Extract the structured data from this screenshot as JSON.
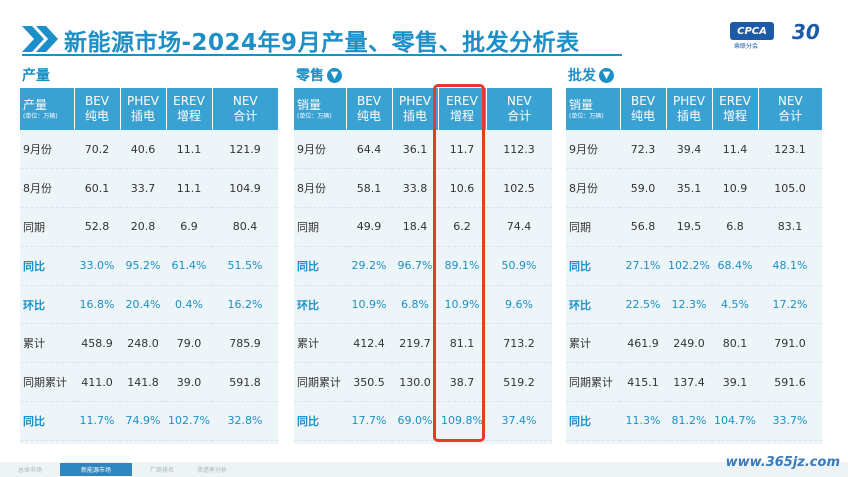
{
  "header": {
    "title": "新能源市场-2024年9月产量、零售、批发分析表",
    "logo_text": "CPCA",
    "logo_sub": "乘联分会",
    "logo_30": "30"
  },
  "sections": {
    "production": {
      "label": "产量"
    },
    "retail": {
      "label": "零售"
    },
    "wholesale": {
      "label": "批发"
    }
  },
  "tables": {
    "production": {
      "head": [
        {
          "l1": "产量",
          "l2": "(单位：万辆)"
        },
        {
          "l1": "BEV",
          "l2": "纯电"
        },
        {
          "l1": "PHEV",
          "l2": "插电"
        },
        {
          "l1": "EREV",
          "l2": "增程"
        },
        {
          "l1": "NEV",
          "l2": "合计"
        }
      ],
      "rows": [
        [
          "9月份",
          "70.2",
          "40.6",
          "11.1",
          "121.9"
        ],
        [
          "8月份",
          "60.1",
          "33.7",
          "11.1",
          "104.9"
        ],
        [
          "同期",
          "52.8",
          "20.8",
          "6.9",
          "80.4"
        ],
        [
          "同比",
          "33.0%",
          "95.2%",
          "61.4%",
          "51.5%"
        ],
        [
          "环比",
          "16.8%",
          "20.4%",
          "0.4%",
          "16.2%"
        ],
        [
          "累计",
          "458.9",
          "248.0",
          "79.0",
          "785.9"
        ],
        [
          "同期累计",
          "411.0",
          "141.8",
          "39.0",
          "591.8"
        ],
        [
          "同比",
          "11.7%",
          "74.9%",
          "102.7%",
          "32.8%"
        ]
      ]
    },
    "retail": {
      "head": [
        {
          "l1": "销量",
          "l2": "(单位：万辆)"
        },
        {
          "l1": "BEV",
          "l2": "纯电"
        },
        {
          "l1": "PHEV",
          "l2": "插电"
        },
        {
          "l1": "EREV",
          "l2": "增程"
        },
        {
          "l1": "NEV",
          "l2": "合计"
        }
      ],
      "rows": [
        [
          "9月份",
          "64.4",
          "36.1",
          "11.7",
          "112.3"
        ],
        [
          "8月份",
          "58.1",
          "33.8",
          "10.6",
          "102.5"
        ],
        [
          "同期",
          "49.9",
          "18.4",
          "6.2",
          "74.4"
        ],
        [
          "同比",
          "29.2%",
          "96.7%",
          "89.1%",
          "50.9%"
        ],
        [
          "环比",
          "10.9%",
          "6.8%",
          "10.9%",
          "9.6%"
        ],
        [
          "累计",
          "412.4",
          "219.7",
          "81.1",
          "713.2"
        ],
        [
          "同期累计",
          "350.5",
          "130.0",
          "38.7",
          "519.2"
        ],
        [
          "同比",
          "17.7%",
          "69.0%",
          "109.8%",
          "37.4%"
        ]
      ]
    },
    "wholesale": {
      "head": [
        {
          "l1": "销量",
          "l2": "(单位：万辆)"
        },
        {
          "l1": "BEV",
          "l2": "纯电"
        },
        {
          "l1": "PHEV",
          "l2": "插电"
        },
        {
          "l1": "EREV",
          "l2": "增程"
        },
        {
          "l1": "NEV",
          "l2": "合计"
        }
      ],
      "rows": [
        [
          "9月份",
          "72.3",
          "39.4",
          "11.4",
          "123.1"
        ],
        [
          "8月份",
          "59.0",
          "35.1",
          "10.9",
          "105.0"
        ],
        [
          "同期",
          "56.8",
          "19.5",
          "6.8",
          "83.1"
        ],
        [
          "同比",
          "27.1%",
          "102.2%",
          "68.4%",
          "48.1%"
        ],
        [
          "环比",
          "22.5%",
          "12.3%",
          "4.5%",
          "17.2%"
        ],
        [
          "累计",
          "461.9",
          "249.0",
          "80.1",
          "791.0"
        ],
        [
          "同期累计",
          "415.1",
          "137.4",
          "39.1",
          "591.6"
        ],
        [
          "同比",
          "11.3%",
          "81.2%",
          "104.7%",
          "33.7%"
        ]
      ]
    }
  },
  "blue_rows": [
    3,
    4,
    7
  ],
  "footer": {
    "tabs": [
      "总体市场",
      "新能源市场",
      "厂商排名",
      "渗透率分析"
    ],
    "active_index": 1,
    "watermark": "www.365jz.com"
  },
  "colors": {
    "accent": "#1b8fc7",
    "header_bg": "#3aa2d3",
    "highlight": "#e8392b"
  }
}
